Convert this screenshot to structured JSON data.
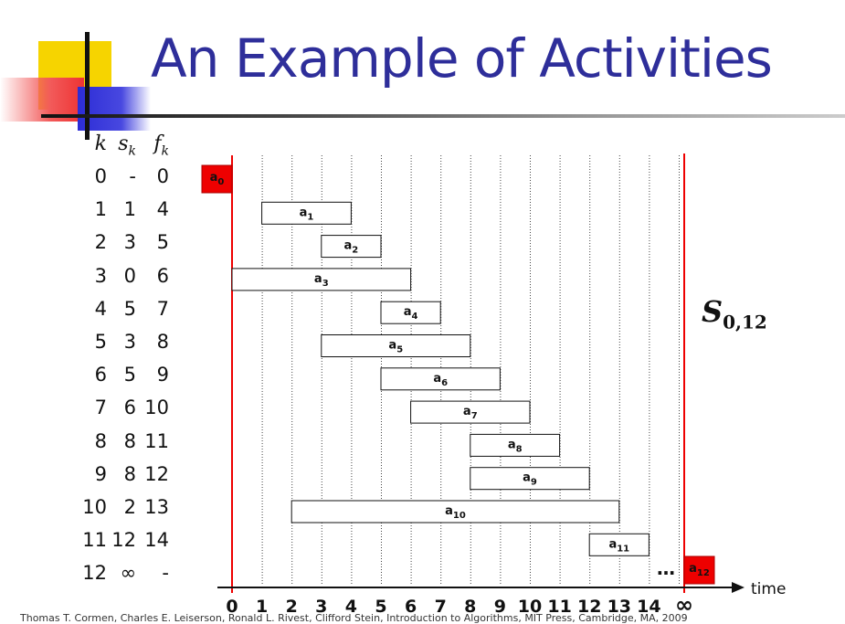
{
  "slide": {
    "title": "An Example of Activities",
    "set_label_main": "S",
    "set_label_sub": "0,12",
    "footer": "Thomas T. Cormen, Charles E. Leiserson, Ronald L. Rivest, Clifford Stein, Introduction to Algorithms, MIT Press, Cambridge, MA, 2009"
  },
  "table": {
    "headers": {
      "k": "k",
      "s_main": "s",
      "s_sub": "k",
      "f_main": "f",
      "f_sub": "k"
    },
    "rows": [
      {
        "k": "0",
        "s": "-",
        "f": "0"
      },
      {
        "k": "1",
        "s": "1",
        "f": "4"
      },
      {
        "k": "2",
        "s": "3",
        "f": "5"
      },
      {
        "k": "3",
        "s": "0",
        "f": "6"
      },
      {
        "k": "4",
        "s": "5",
        "f": "7"
      },
      {
        "k": "5",
        "s": "3",
        "f": "8"
      },
      {
        "k": "6",
        "s": "5",
        "f": "9"
      },
      {
        "k": "7",
        "s": "6",
        "f": "10"
      },
      {
        "k": "8",
        "s": "8",
        "f": "11"
      },
      {
        "k": "9",
        "s": "8",
        "f": "12"
      },
      {
        "k": "10",
        "s": "2",
        "f": "13"
      },
      {
        "k": "11",
        "s": "12",
        "f": "14"
      },
      {
        "k": "12",
        "s": "∞",
        "f": "-"
      }
    ]
  },
  "timeline": {
    "axis_label": "time",
    "ticks": [
      "0",
      "1",
      "2",
      "3",
      "4",
      "5",
      "6",
      "7",
      "8",
      "9",
      "10",
      "11",
      "12",
      "13",
      "14",
      "∞"
    ],
    "ellipsis": "…",
    "sentinel_color": "#ee0000",
    "activities": [
      {
        "label": "a",
        "sub": "1",
        "start": 1,
        "finish": 4
      },
      {
        "label": "a",
        "sub": "2",
        "start": 3,
        "finish": 5
      },
      {
        "label": "a",
        "sub": "3",
        "start": 0,
        "finish": 6
      },
      {
        "label": "a",
        "sub": "4",
        "start": 5,
        "finish": 7
      },
      {
        "label": "a",
        "sub": "5",
        "start": 3,
        "finish": 8
      },
      {
        "label": "a",
        "sub": "6",
        "start": 5,
        "finish": 9
      },
      {
        "label": "a",
        "sub": "7",
        "start": 6,
        "finish": 10
      },
      {
        "label": "a",
        "sub": "8",
        "start": 8,
        "finish": 11
      },
      {
        "label": "a",
        "sub": "9",
        "start": 8,
        "finish": 12
      },
      {
        "label": "a",
        "sub": "10",
        "start": 2,
        "finish": 13
      },
      {
        "label": "a",
        "sub": "11",
        "start": 12,
        "finish": 14
      }
    ],
    "sentinels": [
      {
        "label": "a",
        "sub": "0",
        "at": "0"
      },
      {
        "label": "a",
        "sub": "12",
        "at": "∞"
      }
    ]
  }
}
